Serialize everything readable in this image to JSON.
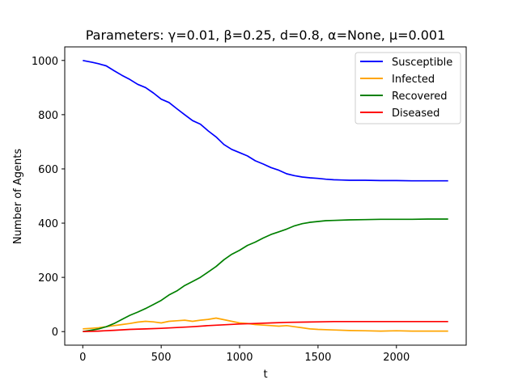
{
  "chart_data": {
    "type": "line",
    "title": "Parameters: γ=0.01, β=0.25, d=0.8, α=None, μ=0.001",
    "xlabel": "t",
    "ylabel": "Number of Agents",
    "xlim": [
      -115,
      2445
    ],
    "ylim": [
      -50,
      1050
    ],
    "xticks": [
      0,
      500,
      1000,
      1500,
      2000
    ],
    "yticks": [
      0,
      200,
      400,
      600,
      800,
      1000
    ],
    "grid": false,
    "legend_position": "upper right",
    "series": [
      {
        "name": "Susceptible",
        "color": "#0000ff",
        "x": [
          0,
          60,
          100,
          150,
          200,
          250,
          300,
          350,
          400,
          450,
          500,
          550,
          600,
          650,
          700,
          750,
          800,
          850,
          900,
          950,
          1000,
          1050,
          1100,
          1150,
          1200,
          1250,
          1300,
          1350,
          1400,
          1450,
          1500,
          1550,
          1600,
          1650,
          1700,
          1800,
          1900,
          2000,
          2100,
          2200,
          2330
        ],
        "y": [
          1000,
          993,
          988,
          980,
          962,
          945,
          930,
          912,
          900,
          880,
          857,
          845,
          822,
          800,
          778,
          765,
          740,
          718,
          690,
          672,
          660,
          648,
          630,
          618,
          605,
          595,
          582,
          575,
          570,
          567,
          565,
          562,
          560,
          559,
          558,
          558,
          557,
          557,
          556,
          556,
          556
        ]
      },
      {
        "name": "Infected",
        "color": "#ffa500",
        "x": [
          0,
          50,
          100,
          150,
          200,
          250,
          300,
          350,
          400,
          450,
          500,
          550,
          600,
          650,
          700,
          750,
          800,
          850,
          900,
          950,
          1000,
          1050,
          1100,
          1150,
          1200,
          1250,
          1300,
          1350,
          1400,
          1450,
          1500,
          1600,
          1700,
          1800,
          1900,
          2000,
          2100,
          2200,
          2330
        ],
        "y": [
          10,
          12,
          14,
          18,
          22,
          26,
          30,
          35,
          38,
          36,
          32,
          38,
          40,
          42,
          38,
          42,
          45,
          50,
          44,
          38,
          32,
          30,
          26,
          24,
          22,
          20,
          22,
          18,
          14,
          10,
          8,
          6,
          4,
          3,
          2,
          3,
          2,
          2,
          2
        ]
      },
      {
        "name": "Recovered",
        "color": "#008000",
        "x": [
          0,
          50,
          100,
          150,
          200,
          250,
          300,
          350,
          400,
          450,
          500,
          550,
          600,
          650,
          700,
          750,
          800,
          850,
          900,
          950,
          1000,
          1050,
          1100,
          1150,
          1200,
          1250,
          1300,
          1350,
          1400,
          1450,
          1500,
          1550,
          1600,
          1700,
          1800,
          1900,
          2000,
          2100,
          2200,
          2330
        ],
        "y": [
          0,
          5,
          10,
          18,
          30,
          45,
          60,
          72,
          85,
          100,
          115,
          135,
          150,
          170,
          185,
          200,
          220,
          240,
          265,
          285,
          300,
          318,
          330,
          345,
          358,
          368,
          378,
          390,
          398,
          403,
          406,
          409,
          410,
          412,
          413,
          414,
          414,
          414,
          415,
          415
        ]
      },
      {
        "name": "Diseased",
        "color": "#ff0000",
        "x": [
          0,
          100,
          200,
          300,
          400,
          500,
          600,
          700,
          800,
          900,
          1000,
          1100,
          1200,
          1300,
          1400,
          1500,
          1600,
          1800,
          2000,
          2200,
          2330
        ],
        "y": [
          0,
          2,
          5,
          8,
          10,
          12,
          15,
          18,
          22,
          25,
          28,
          30,
          32,
          34,
          35,
          36,
          37,
          37,
          37,
          37,
          37
        ]
      }
    ]
  }
}
